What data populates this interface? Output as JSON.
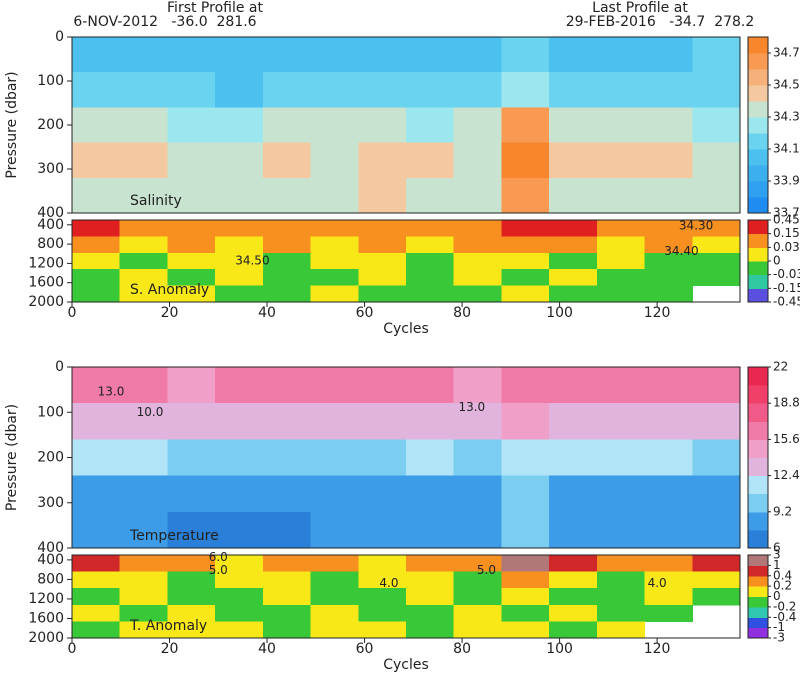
{
  "header": {
    "first_label": "First Profile at",
    "first_info": "6-NOV-2012   -36.0  281.6",
    "last_label": "Last Profile at",
    "last_info": "29-FEB-2016   -34.7  278.2"
  },
  "chart_data": [
    {
      "type": "contour",
      "label": "Salinity",
      "ylabel": "Pressure (dbar)",
      "xlim": [
        0,
        137
      ],
      "ylim": [
        400,
        0
      ],
      "yticks": [
        0,
        100,
        200,
        300,
        400
      ],
      "z": [
        [
          34.05,
          34.05,
          34.05,
          34.05,
          34.05,
          34.05,
          34.05,
          34.05,
          34.05,
          34.15,
          34.05,
          34.05,
          34.05,
          34.15
        ],
        [
          34.15,
          34.15,
          34.15,
          34.05,
          34.15,
          34.15,
          34.15,
          34.15,
          34.15,
          34.25,
          34.15,
          34.15,
          34.15,
          34.15
        ],
        [
          34.35,
          34.35,
          34.25,
          34.25,
          34.35,
          34.35,
          34.35,
          34.25,
          34.35,
          34.65,
          34.35,
          34.35,
          34.35,
          34.25
        ],
        [
          34.45,
          34.45,
          34.35,
          34.35,
          34.45,
          34.35,
          34.45,
          34.45,
          34.35,
          34.75,
          34.45,
          34.45,
          34.45,
          34.35
        ],
        [
          34.35,
          34.35,
          34.35,
          34.35,
          34.35,
          34.35,
          34.45,
          34.35,
          34.35,
          34.65,
          34.35,
          34.35,
          34.35,
          34.35
        ]
      ],
      "colorbar": {
        "levels": [
          33.7,
          33.8,
          33.9,
          34.0,
          34.1,
          34.2,
          34.3,
          34.4,
          34.5,
          34.6,
          34.7,
          34.8
        ],
        "colors": [
          "#1e8cf0",
          "#2fa0f0",
          "#3cb0ee",
          "#4cc0ee",
          "#6ad4f0",
          "#9ce6ee",
          "#c8e4d0",
          "#f4c8a0",
          "#f6b07a",
          "#f89a52",
          "#f8862c"
        ],
        "ticks": [
          33.7,
          33.9,
          34.1,
          34.3,
          34.5,
          34.7
        ]
      }
    },
    {
      "type": "contour",
      "label": "S. Anomaly",
      "xlabel": "Cycles",
      "xlim": [
        0,
        137
      ],
      "xticks": [
        0,
        20,
        40,
        60,
        80,
        100,
        120
      ],
      "ylim": [
        2000,
        300
      ],
      "yticks": [
        400,
        800,
        1200,
        1600,
        2000
      ],
      "z": [
        [
          0.2,
          0.1,
          0.1,
          0.05,
          0.1,
          0.1,
          0.05,
          0.1,
          0.1,
          0.3,
          0.2,
          0.1,
          0.1,
          0.05
        ],
        [
          0.05,
          0.02,
          0.05,
          0.02,
          0.05,
          0.02,
          0.05,
          0.02,
          0.05,
          0.1,
          0.05,
          0.02,
          0.05,
          0.02
        ],
        [
          0.02,
          -0.01,
          0.02,
          0.02,
          -0.01,
          0.02,
          0.02,
          -0.01,
          0.02,
          0.02,
          -0.01,
          0.02,
          -0.01,
          -0.01
        ],
        [
          -0.01,
          0.02,
          -0.01,
          0.02,
          -0.01,
          -0.01,
          0.02,
          -0.01,
          0.02,
          -0.01,
          0.02,
          -0.01,
          -0.01,
          -0.01
        ],
        [
          -0.01,
          0.02,
          0.02,
          -0.01,
          -0.01,
          0.02,
          -0.01,
          -0.01,
          -0.01,
          0.02,
          -0.01,
          -0.01,
          -0.01,
          null
        ]
      ],
      "contour_labels": [
        {
          "text": "34.50",
          "x": 37,
          "y": 1150
        },
        {
          "text": "34.40",
          "x": 125,
          "y": 950
        },
        {
          "text": "34.30",
          "x": 128,
          "y": 420
        }
      ],
      "colorbar": {
        "levels": [
          -0.45,
          -0.15,
          -0.03,
          0,
          0.03,
          0.15,
          0.45
        ],
        "colors": [
          "#5a50e0",
          "#30c8a0",
          "#38c838",
          "#f8e818",
          "#f89020",
          "#e02020"
        ],
        "ticks": [
          -0.45,
          -0.15,
          -0.03,
          0,
          0.03,
          0.15,
          0.45
        ]
      }
    },
    {
      "type": "contour",
      "label": "Temperature",
      "ylabel": "Pressure (dbar)",
      "xlim": [
        0,
        137
      ],
      "ylim": [
        400,
        0
      ],
      "yticks": [
        0,
        100,
        200,
        300,
        400
      ],
      "z": [
        [
          16,
          16,
          15,
          16,
          16,
          16,
          17,
          16,
          15,
          17,
          17,
          17,
          16,
          17
        ],
        [
          13,
          13,
          13,
          13,
          12.5,
          12.5,
          13,
          13,
          13,
          14,
          13,
          13,
          13,
          13
        ],
        [
          11,
          11,
          10,
          10,
          10,
          10,
          10,
          11,
          10,
          11,
          11,
          11,
          11,
          10.5
        ],
        [
          9,
          9,
          8.5,
          8.5,
          8.5,
          9,
          9,
          9,
          9,
          10,
          9,
          9,
          9,
          9
        ],
        [
          8,
          8,
          7.5,
          7.5,
          7.5,
          8,
          8,
          8,
          8,
          9.5,
          8,
          8,
          8,
          8
        ]
      ],
      "contour_labels": [
        {
          "text": "13.0",
          "x": 8,
          "y": 55
        },
        {
          "text": "10.0",
          "x": 16,
          "y": 100
        },
        {
          "text": "13.0",
          "x": 82,
          "y": 90
        }
      ],
      "colorbar": {
        "levels": [
          6,
          7.6,
          9.2,
          10.8,
          12.4,
          14,
          15.6,
          17.2,
          18.8,
          20.4,
          22
        ],
        "colors": [
          "#2a80d8",
          "#3c9ce8",
          "#7ccef0",
          "#b0e4f6",
          "#e0b4dc",
          "#f0a0c8",
          "#f07aa8",
          "#f05a88",
          "#f0406a",
          "#e82850"
        ],
        "ticks": [
          6,
          9.2,
          12.4,
          15.6,
          18.8,
          22
        ]
      }
    },
    {
      "type": "contour",
      "label": "T. Anomaly",
      "xlabel": "Cycles",
      "xlim": [
        0,
        137
      ],
      "xticks": [
        0,
        20,
        40,
        60,
        80,
        100,
        120
      ],
      "ylim": [
        2000,
        300
      ],
      "yticks": [
        400,
        800,
        1200,
        1600,
        2000
      ],
      "z": [
        [
          0.5,
          0.3,
          0.3,
          0.1,
          0.3,
          0.3,
          0.1,
          0.3,
          0.3,
          1.5,
          0.5,
          0.3,
          0.3,
          0.5
        ],
        [
          0.1,
          0.1,
          -0.1,
          0.1,
          0.1,
          -0.1,
          0.1,
          0.1,
          -0.1,
          0.3,
          0.1,
          -0.1,
          0.1,
          0.1
        ],
        [
          -0.1,
          0.1,
          -0.1,
          -0.1,
          0.1,
          -0.1,
          -0.1,
          0.1,
          -0.1,
          0.1,
          -0.1,
          -0.1,
          0.1,
          -0.1
        ],
        [
          0.1,
          -0.1,
          0.1,
          -0.1,
          -0.1,
          0.1,
          -0.1,
          -0.1,
          0.1,
          -0.1,
          0.1,
          -0.1,
          -0.1,
          null
        ],
        [
          -0.1,
          0.1,
          0.1,
          0.1,
          -0.1,
          0.1,
          0.1,
          -0.1,
          0.1,
          0.1,
          -0.1,
          0.1,
          null,
          null
        ]
      ],
      "contour_labels": [
        {
          "text": "6.0",
          "x": 30,
          "y": 350
        },
        {
          "text": "5.0",
          "x": 30,
          "y": 620
        },
        {
          "text": "4.0",
          "x": 65,
          "y": 880
        },
        {
          "text": "5.0",
          "x": 85,
          "y": 620
        },
        {
          "text": "4.0",
          "x": 120,
          "y": 880
        }
      ],
      "colorbar": {
        "levels": [
          -3,
          -1,
          -0.4,
          -0.2,
          0,
          0.2,
          0.4,
          1,
          3
        ],
        "colors": [
          "#9030e0",
          "#3050e0",
          "#30c8b0",
          "#38c838",
          "#f8e818",
          "#f89020",
          "#d02828",
          "#b07878"
        ],
        "ticks": [
          -3,
          -1,
          -0.4,
          -0.2,
          0,
          0.2,
          0.4,
          1,
          3
        ]
      }
    }
  ]
}
